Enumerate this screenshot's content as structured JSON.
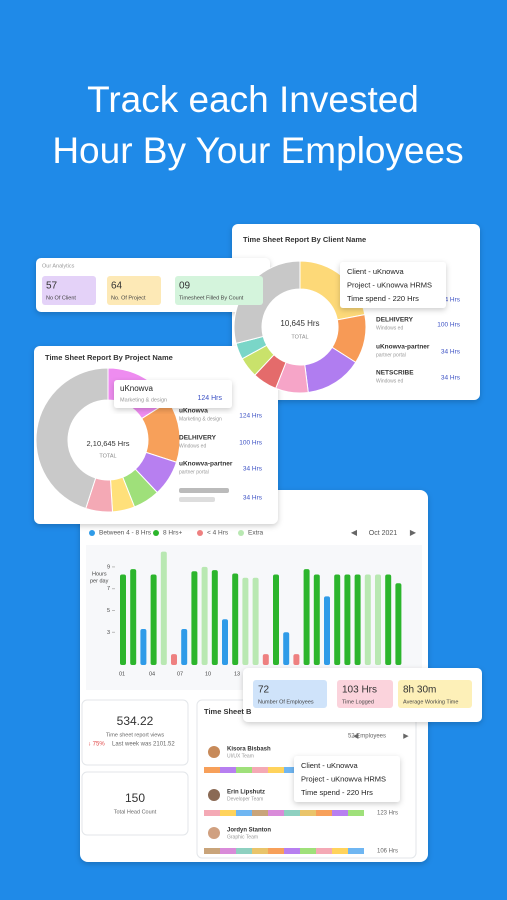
{
  "headline": [
    "Track each Invested",
    "Hour By Your Employees"
  ],
  "analytics": {
    "title": "Our Analytics",
    "items": [
      {
        "value": "57",
        "label": "No Of Client",
        "color": "#e4d2f8"
      },
      {
        "value": "64",
        "label": "No. Of Project",
        "color": "#fde9b6"
      },
      {
        "value": "09",
        "label": "Timesheet Filled By Count",
        "color": "#d4f4dc"
      }
    ]
  },
  "client_report": {
    "title": "Time Sheet Report By Client Name",
    "total": "10,645 Hrs",
    "total_label": "TOTAL",
    "tooltip": [
      "Client - uKnowva",
      "Project - uKnowva HRMS",
      "Time spend - 220 Hrs"
    ],
    "rows": [
      {
        "hours": "34 Hrs"
      },
      {
        "name": "DELHIVERY",
        "sub": "Windows ed",
        "hours": "100 Hrs"
      },
      {
        "name": "uKnowva-partner",
        "sub": "partner portal",
        "hours": "34 Hrs"
      },
      {
        "name": "NETSCRIBE",
        "sub": "Windows ed",
        "hours": "34 Hrs"
      }
    ],
    "donut": {
      "values": [
        22,
        12,
        14,
        8,
        6,
        5,
        4,
        29
      ],
      "colors": [
        "#fdd978",
        "#f79a56",
        "#b07df0",
        "#f6a5c8",
        "#e46b6b",
        "#c9e26b",
        "#7ad6c8",
        "#c8c8c8"
      ]
    }
  },
  "project_report": {
    "title": "Time Sheet Report By Project Name",
    "total": "2,10,645 Hrs",
    "total_label": "TOTAL",
    "tooltip": {
      "name": "uKnowva",
      "sub": "Marketing & design",
      "hours": "124 Hrs"
    },
    "rows": [
      {
        "name": "uKnowva",
        "sub": "Marketing & design",
        "hours": "124 Hrs"
      },
      {
        "name": "DELHIVERY",
        "sub": "Windows ed",
        "hours": "100 Hrs"
      },
      {
        "name": "uKnowva-partner",
        "sub": "partner portal",
        "hours": "34 Hrs"
      },
      {
        "hours": "34 Hrs"
      }
    ],
    "donut": {
      "values": [
        16,
        14,
        8,
        6,
        5,
        6,
        45
      ],
      "colors": [
        "#ee8cf0",
        "#f7a05a",
        "#b77ff0",
        "#9fe07a",
        "#ffe07a",
        "#f4a9b5",
        "#c9c9c9"
      ]
    }
  },
  "timesheet": {
    "legend": [
      {
        "name": "Between 4 - 8 Hrs",
        "color": "#2f9be8"
      },
      {
        "name": "8 Hrs+",
        "color": "#2cb52c"
      },
      {
        "name": "< 4 Hrs",
        "color": "#ee8080"
      },
      {
        "name": "Extra",
        "color": "#b9e8b2"
      }
    ],
    "month": "Oct 2021",
    "y_label": [
      "Hours",
      "per day"
    ],
    "ylim": [
      0,
      10
    ],
    "yticks": [
      9,
      7,
      5,
      3
    ],
    "x_labels": [
      "01",
      "04",
      "07",
      "10",
      "13"
    ],
    "bars": {
      "values": [
        8.3,
        8.8,
        3.3,
        8.3,
        10.4,
        1,
        3.3,
        8.6,
        9,
        8.7,
        4.2,
        8.4,
        8,
        8,
        1,
        8.3,
        3,
        1,
        8.8,
        8.3,
        6.3,
        8.3,
        8.3,
        8.3,
        8.3,
        8.3,
        8.3,
        7.5
      ],
      "colors": [
        "#2cb52c",
        "#2cb52c",
        "#2f9be8",
        "#2cb52c",
        "#b9e8b2",
        "#ee8080",
        "#2f9be8",
        "#2cb52c",
        "#b9e8b2",
        "#2cb52c",
        "#2f9be8",
        "#2cb52c",
        "#b9e8b2",
        "#b9e8b2",
        "#ee8080",
        "#2cb52c",
        "#2f9be8",
        "#ee8080",
        "#2cb52c",
        "#2cb52c",
        "#2f9be8",
        "#2cb52c",
        "#2cb52c",
        "#2cb52c",
        "#b9e8b2",
        "#b9e8b2",
        "#2cb52c",
        "#2cb52c"
      ]
    }
  },
  "summary": [
    {
      "value": "72",
      "label": "Number Of Employees",
      "color": "#cfe3fa"
    },
    {
      "value": "103 Hrs",
      "label": "Time Logged",
      "color": "#fbd3dc"
    },
    {
      "value": "8h 30m",
      "label": "Average Working Time",
      "color": "#fdf0b8"
    }
  ],
  "views": {
    "value": "534.22",
    "label": "Time sheet report views",
    "change": "↓ 75%",
    "note": "Last week was 2101.52"
  },
  "head_count": {
    "value": "150",
    "label": "Total Head Count"
  },
  "employees": {
    "title": "Time Sheet B",
    "count": "52 Employees",
    "tooltip": [
      "Client - uKnowva",
      "Project - uKnowva HRMS",
      "Time spend - 220 Hrs"
    ],
    "people": [
      {
        "name": "Kisora Bisbash",
        "team": "UI/UX Team"
      },
      {
        "name": "Erin Lipshutz",
        "team": "Developer Team",
        "hours": "123 Hrs"
      },
      {
        "name": "Jordyn Stanton",
        "team": "Graphic Team",
        "hours": "106 Hrs"
      }
    ]
  }
}
